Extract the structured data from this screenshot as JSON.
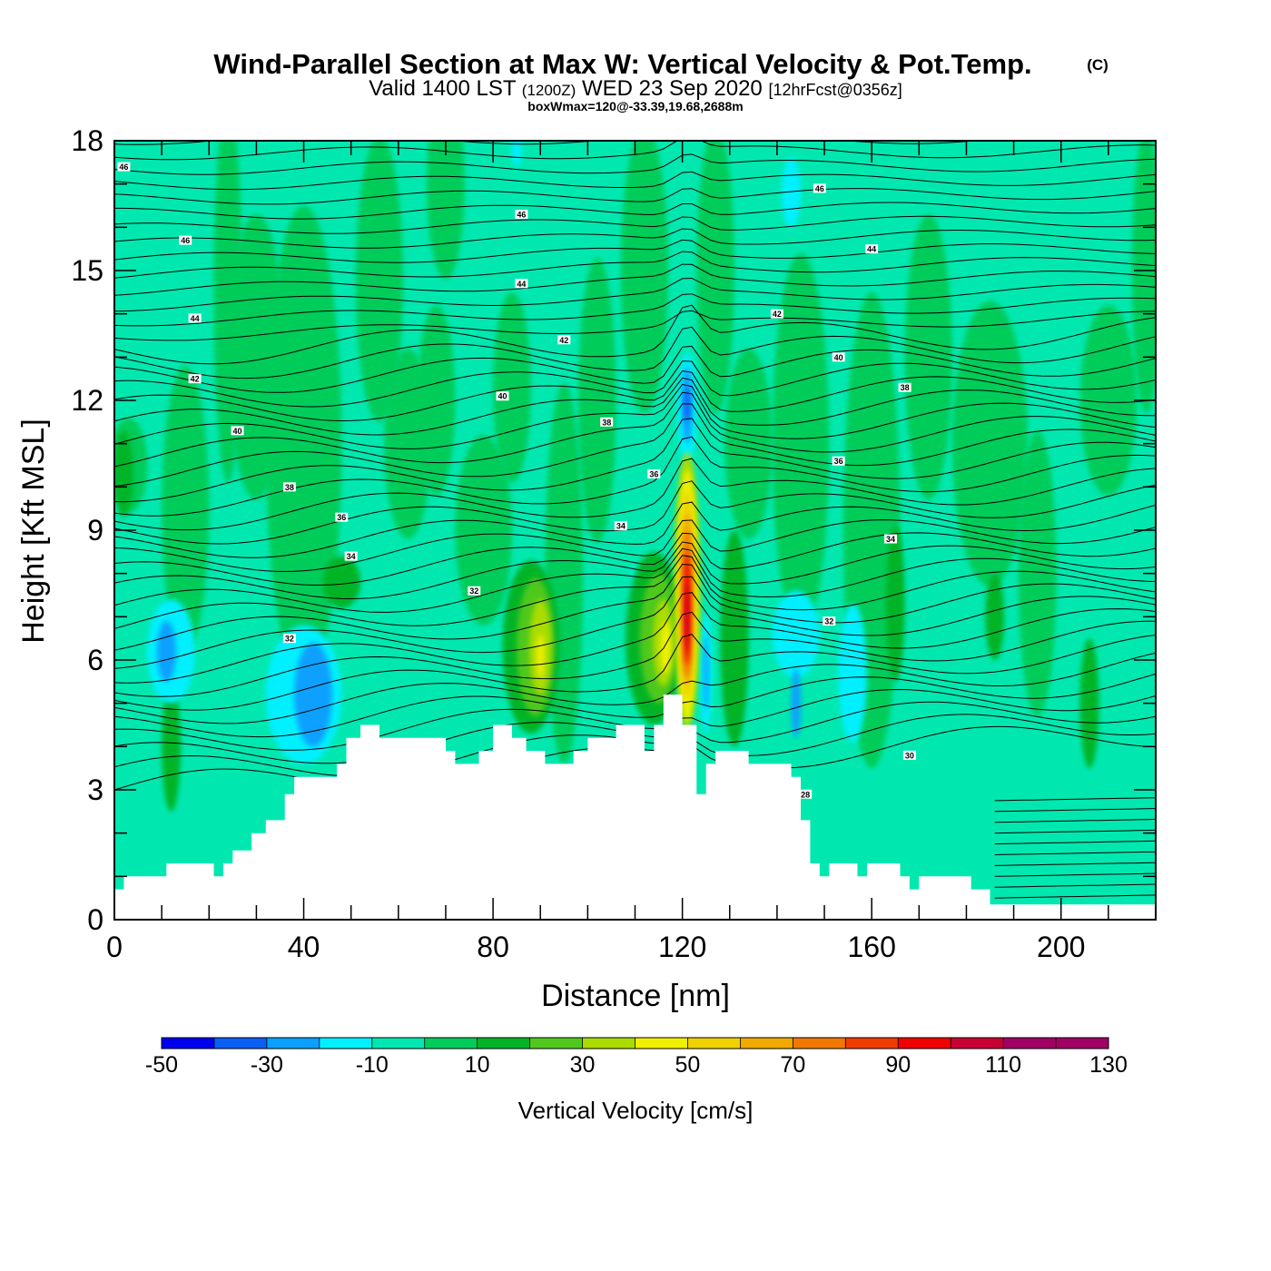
{
  "chart_data": {
    "type": "heatmap",
    "title": "Wind-Parallel Section at Max W: Vertical Velocity & Pot.Temp.",
    "title_mark": "(C)",
    "subtitle_parts": [
      "Valid 1400 LST",
      "(1200Z)",
      "WED 23 Sep 2020",
      "[12hrFcst@0356z]"
    ],
    "note": "boxWmax=120@-33.39,19.68,2688m",
    "xlabel": "Distance [nm]",
    "ylabel": "Height [Kft MSL]",
    "xlim": [
      0,
      220
    ],
    "ylim": [
      0,
      18
    ],
    "x_ticks": [
      0,
      40,
      80,
      120,
      160,
      200
    ],
    "y_ticks": [
      0,
      3,
      6,
      9,
      12,
      15,
      18
    ],
    "colorbar": {
      "label": "Vertical Velocity [cm/s]",
      "tick_labels": [
        "-50",
        "-30",
        "-10",
        "10",
        "30",
        "50",
        "70",
        "90",
        "110",
        "130"
      ],
      "colors": [
        "#0000f0",
        "#0a5ff5",
        "#0aa0ff",
        "#00f0ff",
        "#00e8b0",
        "#00cc5a",
        "#00b428",
        "#50c81e",
        "#aadc00",
        "#f0f000",
        "#f0d200",
        "#f0aa00",
        "#f07800",
        "#f03c00",
        "#f00000",
        "#c80032",
        "#a00064"
      ]
    },
    "theta_contour_labels": [
      {
        "text": "46",
        "x": 2,
        "y": 17.4
      },
      {
        "text": "46",
        "x": 15,
        "y": 15.7
      },
      {
        "text": "46",
        "x": 86,
        "y": 16.3
      },
      {
        "text": "46",
        "x": 149,
        "y": 16.9
      },
      {
        "text": "44",
        "x": 17,
        "y": 13.9
      },
      {
        "text": "44",
        "x": 86,
        "y": 14.7
      },
      {
        "text": "44",
        "x": 160,
        "y": 15.5
      },
      {
        "text": "42",
        "x": 17,
        "y": 12.5
      },
      {
        "text": "42",
        "x": 95,
        "y": 13.4
      },
      {
        "text": "42",
        "x": 140,
        "y": 14.0
      },
      {
        "text": "40",
        "x": 26,
        "y": 11.3
      },
      {
        "text": "40",
        "x": 82,
        "y": 12.1
      },
      {
        "text": "40",
        "x": 153,
        "y": 13.0
      },
      {
        "text": "38",
        "x": 37,
        "y": 10.0
      },
      {
        "text": "38",
        "x": 104,
        "y": 11.5
      },
      {
        "text": "38",
        "x": 167,
        "y": 12.3
      },
      {
        "text": "36",
        "x": 48,
        "y": 9.3
      },
      {
        "text": "36",
        "x": 114,
        "y": 10.3
      },
      {
        "text": "36",
        "x": 153,
        "y": 10.6
      },
      {
        "text": "34",
        "x": 50,
        "y": 8.4
      },
      {
        "text": "34",
        "x": 107,
        "y": 9.1
      },
      {
        "text": "34",
        "x": 164,
        "y": 8.8
      },
      {
        "text": "32",
        "x": 76,
        "y": 7.6
      },
      {
        "text": "32",
        "x": 37,
        "y": 6.5
      },
      {
        "text": "32",
        "x": 151,
        "y": 6.9
      },
      {
        "text": "30",
        "x": 168,
        "y": 3.8
      },
      {
        "text": "28",
        "x": 146,
        "y": 2.9
      }
    ]
  }
}
